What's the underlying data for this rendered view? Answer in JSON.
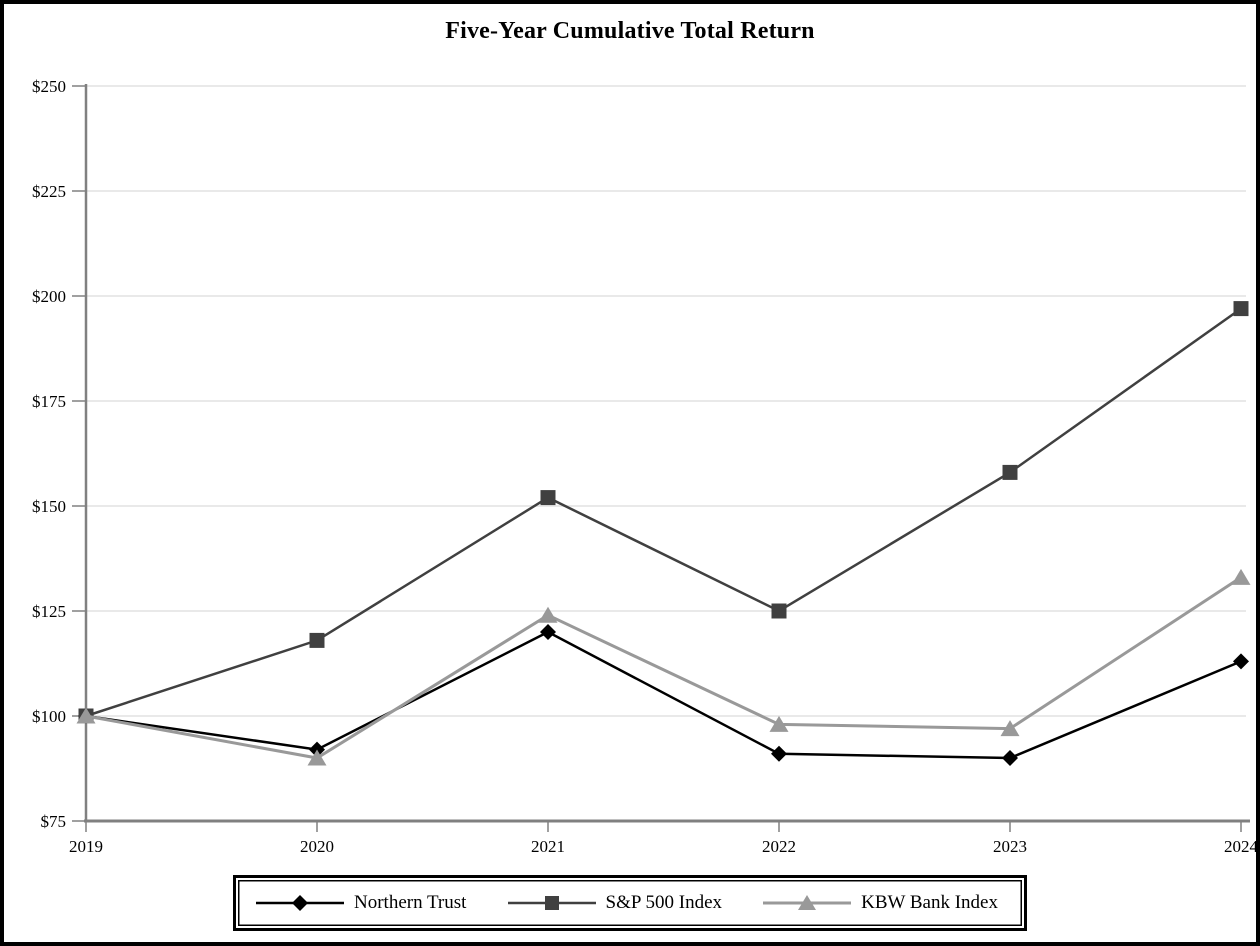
{
  "figure": {
    "background": "#ffffff",
    "border_color": "#000000"
  },
  "chart_data": {
    "type": "line",
    "title": "Five-Year Cumulative Total Return",
    "categories": [
      "2019",
      "2020",
      "2021",
      "2022",
      "2023",
      "2024"
    ],
    "series": [
      {
        "name": "Northern Trust",
        "marker": "diamond",
        "color": "#000000",
        "values": [
          100,
          92,
          120,
          91,
          90,
          113
        ]
      },
      {
        "name": "S&P 500 Index",
        "marker": "square",
        "color": "#404040",
        "values": [
          100,
          118,
          152,
          125,
          158,
          197
        ]
      },
      {
        "name": "KBW Bank Index",
        "marker": "triangle",
        "color": "#999999",
        "values": [
          100,
          90,
          124,
          98,
          97,
          133
        ]
      }
    ],
    "ylim": [
      75,
      250
    ],
    "ytick_step": 25,
    "ytick_prefix": "$",
    "ytick_labels": [
      "$75",
      "$100",
      "$125",
      "$150",
      "$175",
      "$200",
      "$225",
      "$250"
    ],
    "xlabel": "",
    "ylabel": "",
    "grid": "horizontal",
    "gridline_color": "#e9e9e9",
    "axis_color": "#808080",
    "legend_position": "bottom"
  }
}
